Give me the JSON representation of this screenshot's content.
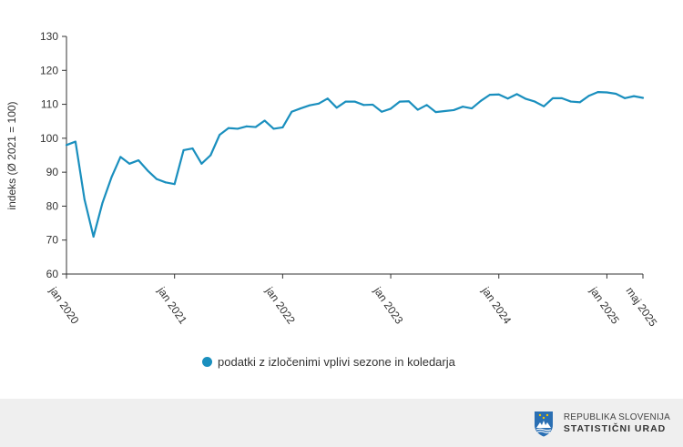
{
  "colors": {
    "series": "#1a8fbe",
    "axis": "#333333",
    "footer_bg": "#efefef",
    "logo_blue": "#2a6fb3"
  },
  "legend": {
    "label": "podatki z izločenimi vplivi sezone in koledarja"
  },
  "footer": {
    "logo_icon": "slovenia-coat-of-arms-icon",
    "line1": "REPUBLIKA SLOVENIJA",
    "line2": "STATISTIČNI URAD"
  },
  "chart_data": {
    "type": "line",
    "title": "",
    "xlabel": "",
    "ylabel": "indeks (Ø 2021 = 100)",
    "ylim": [
      60,
      130
    ],
    "yticks": [
      60,
      70,
      80,
      90,
      100,
      110,
      120,
      130
    ],
    "grid": false,
    "legend_position": "bottom",
    "x_tick_labels": [
      {
        "index": 0,
        "label": "jan 2020"
      },
      {
        "index": 12,
        "label": "jan 2021"
      },
      {
        "index": 24,
        "label": "jan 2022"
      },
      {
        "index": 36,
        "label": "jan 2023"
      },
      {
        "index": 48,
        "label": "jan 2024"
      },
      {
        "index": 60,
        "label": "jan 2025"
      },
      {
        "index": 64,
        "label": "maj 2025"
      }
    ],
    "series": [
      {
        "name": "podatki z izločenimi vplivi sezone in koledarja",
        "values": [
          98.0,
          99.0,
          82.0,
          71.0,
          81.0,
          88.5,
          94.5,
          92.5,
          93.5,
          90.5,
          88.0,
          87.0,
          86.5,
          96.5,
          97.0,
          92.5,
          95.0,
          101.0,
          103.0,
          102.8,
          103.5,
          103.3,
          105.2,
          102.8,
          103.2,
          107.8,
          108.8,
          109.7,
          110.2,
          111.7,
          109.0,
          110.8,
          110.8,
          109.8,
          109.9,
          107.8,
          108.7,
          110.8,
          110.9,
          108.4,
          109.8,
          107.7,
          108.0,
          108.3,
          109.3,
          108.8,
          111.0,
          112.8,
          112.9,
          111.7,
          113.0,
          111.6,
          110.8,
          109.4,
          111.8,
          111.8,
          110.8,
          110.6,
          112.5,
          113.6,
          113.5,
          113.1,
          111.8,
          112.4,
          111.9
        ]
      }
    ]
  }
}
